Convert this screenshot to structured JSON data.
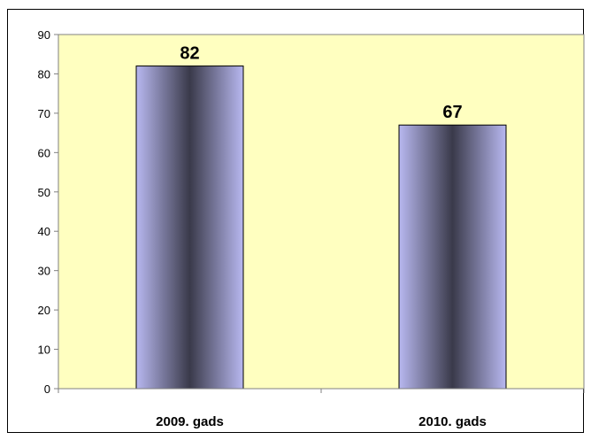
{
  "chart_data": {
    "type": "bar",
    "title": "",
    "xlabel": "",
    "ylabel": "",
    "categories": [
      "2009. gads",
      "2010. gads"
    ],
    "values": [
      82,
      67
    ],
    "data_labels": [
      "82",
      "67"
    ],
    "ylim": [
      0,
      90
    ],
    "yticks": [
      0,
      10,
      20,
      30,
      40,
      50,
      60,
      70,
      80,
      90
    ],
    "ytick_labels": [
      "0",
      "10",
      "20",
      "30",
      "40",
      "50",
      "60",
      "70",
      "80",
      "90"
    ],
    "grid": false,
    "legend": "none",
    "colors": {
      "plot_background": "#ffffc0",
      "bar_edge": "#b8b8f0",
      "bar_center": "#3a3a4a",
      "bar_outline": "#000000",
      "axis": "#808080"
    }
  }
}
